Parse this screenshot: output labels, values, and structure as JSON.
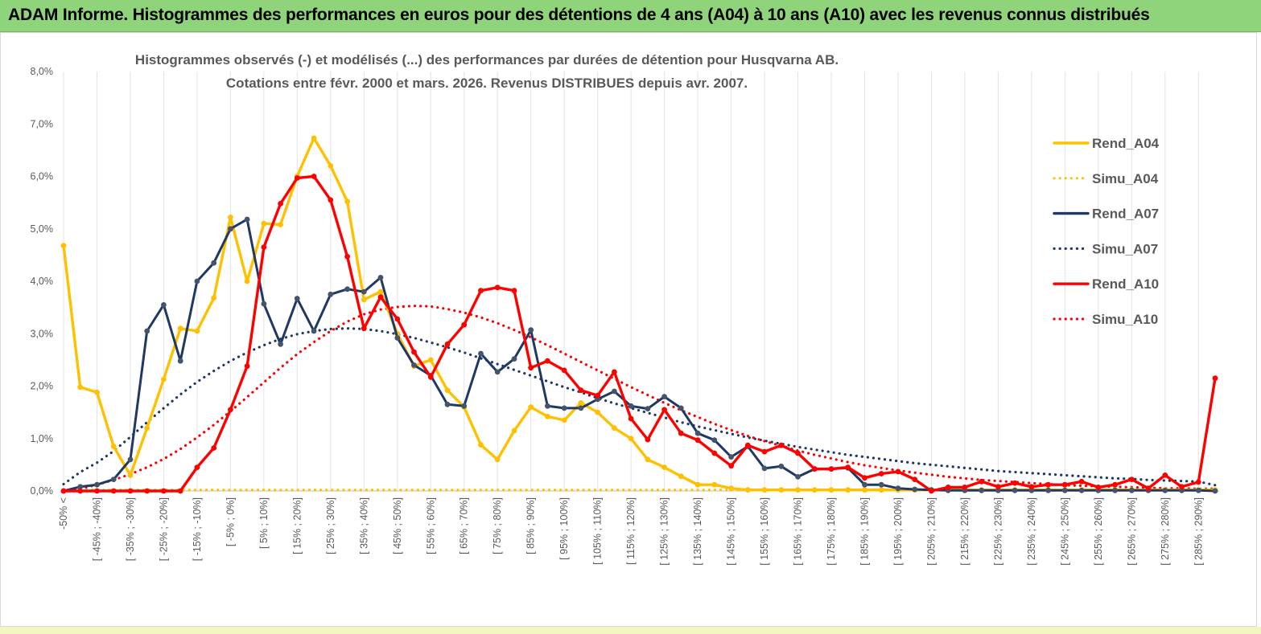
{
  "banner": {
    "title": "ADAM Informe. Histogrammes des performances en euros pour des détentions de 4 ans (A04) à 10 ans (A10) avec les revenus connus distribués"
  },
  "chart_data": {
    "type": "line",
    "title": "Histogrammes observés (-)  et modélisés (...) des performances par durées de détention pour Husqvarna AB.",
    "subtitle": "Cotations entre févr. 2000 et mars. 2026. Revenus DISTRIBUES depuis avr. 2007.",
    "xlabel": "",
    "ylabel": "",
    "ylim": [
      0,
      8
    ],
    "y_ticks": [
      "0,0%",
      "1,0%",
      "2,0%",
      "3,0%",
      "4,0%",
      "5,0%",
      "6,0%",
      "7,0%",
      "8,0%"
    ],
    "grid": "vertical",
    "legend_position": "right",
    "x_labels": [
      "-50% <",
      "[ -45% ; -40%]",
      "[ -35% ; -30%]",
      "[ -25% ; -20%]",
      "[ -15% ; -10%]",
      "[ -5% ; 0%]",
      "[ 5% ; 10%]",
      "[ 15% ; 20%]",
      "[ 25% ; 30%]",
      "[ 35% ; 40%]",
      "[ 45% ; 50%]",
      "[ 55% ; 60%]",
      "[ 65% ; 70%]",
      "[ 75% ; 80%]",
      "[ 85% ; 90%]",
      "[ 95% ; 100%]",
      "[ 105% ; 110%]",
      "[ 115% ; 120%]",
      "[ 125% ; 130%]",
      "[ 135% ; 140%]",
      "[ 145% ; 150%]",
      "[ 155% ; 160%]",
      "[ 165% ; 170%]",
      "[ 175% ; 180%]",
      "[ 185% ; 190%]",
      "[ 195% ; 200%]",
      "[ 205% ; 210%]",
      "[ 215% ; 220%]",
      "[ 225% ; 230%]",
      "[ 235% ; 240%]",
      "[ 245% ; 250%]",
      "[ 255% ; 260%]",
      "[ 265% ; 270%]",
      "[ 275% ; 280%]",
      "[ 285% ; 290%]"
    ],
    "series": [
      {
        "name": "Rend_A04",
        "color": "#ffc000",
        "style": "solid",
        "markers": true,
        "values": [
          4.68,
          1.98,
          1.88,
          0.85,
          0.3,
          1.2,
          2.13,
          3.1,
          3.05,
          3.68,
          5.22,
          4.0,
          5.1,
          5.08,
          6.0,
          6.73,
          6.2,
          5.52,
          3.65,
          3.8,
          3.0,
          2.38,
          2.5,
          1.92,
          1.6,
          0.88,
          0.6,
          1.15,
          1.6,
          1.42,
          1.35,
          1.68,
          1.5,
          1.2,
          1.0,
          0.6,
          0.45,
          0.28,
          0.12,
          0.12,
          0.05,
          0.02,
          0.02,
          0.02,
          0.02,
          0.02,
          0.02,
          0.02,
          0.02,
          0.02,
          0.02,
          0.02,
          0.02,
          0.02,
          0.02,
          0.02,
          0.02,
          0.02,
          0.02,
          0.02,
          0.02,
          0.02,
          0.02,
          0.02,
          0.02,
          0.02,
          0.02,
          0.02,
          0.02,
          0.02
        ]
      },
      {
        "name": "Simu_A04",
        "color": "#ffc000",
        "style": "dotted",
        "markers": false,
        "values": [
          0.02,
          0.02,
          0.02,
          0.02,
          0.02,
          0.02,
          0.02,
          0.02,
          0.02,
          0.02,
          0.02,
          0.02,
          0.02,
          0.02,
          0.02,
          0.02,
          0.02,
          0.02,
          0.02,
          0.02,
          0.02,
          0.02,
          0.02,
          0.02,
          0.02,
          0.02,
          0.02,
          0.02,
          0.02,
          0.02,
          0.02,
          0.02,
          0.02,
          0.02,
          0.02,
          0.02,
          0.02,
          0.02,
          0.02,
          0.02,
          0.02,
          0.02,
          0.02,
          0.02,
          0.02,
          0.02,
          0.02,
          0.02,
          0.02,
          0.02,
          0.02,
          0.02,
          0.02,
          0.02,
          0.02,
          0.02,
          0.02,
          0.02,
          0.02,
          0.02,
          0.02,
          0.02,
          0.02,
          0.02,
          0.02,
          0.02,
          0.02,
          0.02,
          0.02,
          0.02
        ]
      },
      {
        "name": "Rend_A07",
        "color": "#1f3864",
        "style": "solid",
        "markers": true,
        "values": [
          0.0,
          0.08,
          0.12,
          0.22,
          0.6,
          3.05,
          3.55,
          2.48,
          4.0,
          4.35,
          5.0,
          5.18,
          3.57,
          2.8,
          3.67,
          3.05,
          3.75,
          3.85,
          3.8,
          4.07,
          2.92,
          2.4,
          2.2,
          1.65,
          1.62,
          2.62,
          2.27,
          2.52,
          3.07,
          1.62,
          1.58,
          1.58,
          1.75,
          1.9,
          1.62,
          1.57,
          1.8,
          1.58,
          1.1,
          0.97,
          0.65,
          0.85,
          0.43,
          0.47,
          0.27,
          0.42,
          0.42,
          0.44,
          0.12,
          0.12,
          0.05,
          0.03,
          0.02,
          0.01,
          0.01,
          0.01,
          0.01,
          0.01,
          0.01,
          0.01,
          0.01,
          0.01,
          0.01,
          0.01,
          0.01,
          0.01,
          0.01,
          0.01,
          0.01,
          0.0
        ]
      },
      {
        "name": "Simu_A07",
        "color": "#1f3864",
        "style": "dotted",
        "markers": false,
        "values": [
          0.13,
          0.36,
          0.54,
          0.76,
          1.03,
          1.31,
          1.58,
          1.84,
          2.08,
          2.29,
          2.48,
          2.64,
          2.78,
          2.9,
          2.99,
          3.05,
          3.09,
          3.1,
          3.09,
          3.05,
          2.99,
          2.92,
          2.83,
          2.74,
          2.64,
          2.53,
          2.42,
          2.31,
          2.2,
          2.09,
          1.98,
          1.88,
          1.77,
          1.67,
          1.58,
          1.49,
          1.4,
          1.31,
          1.23,
          1.16,
          1.09,
          1.02,
          0.96,
          0.9,
          0.84,
          0.79,
          0.74,
          0.69,
          0.65,
          0.61,
          0.57,
          0.53,
          0.5,
          0.47,
          0.44,
          0.41,
          0.38,
          0.36,
          0.34,
          0.32,
          0.3,
          0.28,
          0.26,
          0.24,
          0.23,
          0.21,
          0.2,
          0.19,
          0.18,
          0.11
        ]
      },
      {
        "name": "Rend_A10",
        "color": "#ff0000",
        "style": "solid",
        "markers": true,
        "values": [
          0.0,
          0.0,
          0.0,
          0.0,
          0.0,
          0.0,
          0.0,
          0.0,
          0.45,
          0.82,
          1.55,
          2.38,
          4.65,
          5.48,
          5.97,
          6.0,
          5.55,
          4.47,
          3.1,
          3.7,
          3.28,
          2.65,
          2.17,
          2.8,
          3.17,
          3.82,
          3.88,
          3.82,
          2.35,
          2.48,
          2.3,
          1.92,
          1.82,
          2.27,
          1.38,
          0.98,
          1.55,
          1.1,
          0.97,
          0.72,
          0.48,
          0.87,
          0.75,
          0.87,
          0.72,
          0.42,
          0.42,
          0.45,
          0.25,
          0.33,
          0.37,
          0.22,
          0.0,
          0.07,
          0.07,
          0.18,
          0.08,
          0.15,
          0.08,
          0.12,
          0.12,
          0.18,
          0.07,
          0.12,
          0.22,
          0.05,
          0.3,
          0.08,
          0.17,
          2.15
        ]
      },
      {
        "name": "Simu_A10",
        "color": "#ff0000",
        "style": "dotted",
        "markers": false,
        "values": [
          0.0,
          0.04,
          0.12,
          0.21,
          0.32,
          0.45,
          0.61,
          0.8,
          1.02,
          1.26,
          1.52,
          1.79,
          2.07,
          2.35,
          2.61,
          2.84,
          3.05,
          3.23,
          3.37,
          3.46,
          3.51,
          3.53,
          3.52,
          3.47,
          3.4,
          3.31,
          3.2,
          3.07,
          2.93,
          2.78,
          2.62,
          2.46,
          2.3,
          2.14,
          1.98,
          1.83,
          1.68,
          1.54,
          1.41,
          1.28,
          1.16,
          1.05,
          0.95,
          0.86,
          0.77,
          0.69,
          0.62,
          0.55,
          0.49,
          0.44,
          0.39,
          0.35,
          0.31,
          0.27,
          0.24,
          0.21,
          0.19,
          0.17,
          0.15,
          0.13,
          0.11,
          0.1,
          0.09,
          0.08,
          0.07,
          0.06,
          0.05,
          0.05,
          0.04,
          0.04
        ]
      }
    ]
  }
}
